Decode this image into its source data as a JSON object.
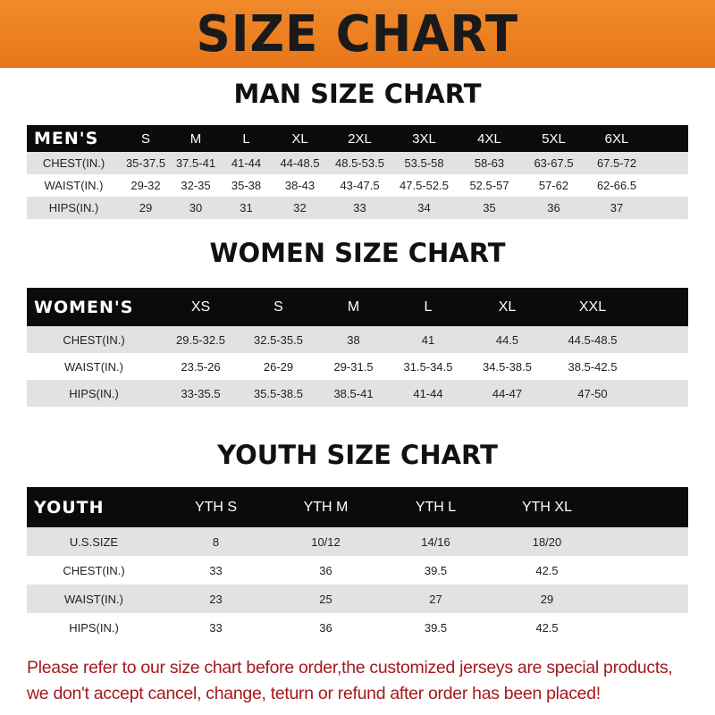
{
  "banner": "SIZE CHART",
  "men": {
    "title": "MAN SIZE CHART",
    "header": [
      "MEN'S",
      "S",
      "M",
      "L",
      "XL",
      "2XL",
      "3XL",
      "4XL",
      "5XL",
      "6XL"
    ],
    "rows": [
      [
        "CHEST(IN.)",
        "35-37.5",
        "37.5-41",
        "41-44",
        "44-48.5",
        "48.5-53.5",
        "53.5-58",
        "58-63",
        "63-67.5",
        "67.5-72"
      ],
      [
        "WAIST(IN.)",
        "29-32",
        "32-35",
        "35-38",
        "38-43",
        "43-47.5",
        "47.5-52.5",
        "52.5-57",
        "57-62",
        "62-66.5"
      ],
      [
        "HIPS(IN.)",
        "29",
        "30",
        "31",
        "32",
        "33",
        "34",
        "35",
        "36",
        "37"
      ]
    ]
  },
  "women": {
    "title": "WOMEN SIZE CHART",
    "header": [
      "WOMEN'S",
      "XS",
      "S",
      "M",
      "L",
      "XL",
      "XXL"
    ],
    "rows": [
      [
        "CHEST(IN.)",
        "29.5-32.5",
        "32.5-35.5",
        "38",
        "41",
        "44.5",
        "44.5-48.5"
      ],
      [
        "WAIST(IN.)",
        "23.5-26",
        "26-29",
        "29-31.5",
        "31.5-34.5",
        "34.5-38.5",
        "38.5-42.5"
      ],
      [
        "HIPS(IN.)",
        "33-35.5",
        "35.5-38.5",
        "38.5-41",
        "41-44",
        "44-47",
        "47-50"
      ]
    ]
  },
  "youth": {
    "title": "YOUTH SIZE CHART",
    "header": [
      "YOUTH",
      "YTH S",
      "YTH M",
      "YTH L",
      "YTH XL"
    ],
    "rows": [
      [
        "U.S.SIZE",
        "8",
        "10/12",
        "14/16",
        "18/20"
      ],
      [
        "CHEST(IN.)",
        "33",
        "36",
        "39.5",
        "42.5"
      ],
      [
        "WAIST(IN.)",
        "23",
        "25",
        "27",
        "29"
      ],
      [
        "HIPS(IN.)",
        "33",
        "36",
        "39.5",
        "42.5"
      ]
    ]
  },
  "note": [
    "Please refer to our size chart before order,the customized jerseys are special products,",
    "we don't accept cancel, change, teturn or refund after order has been placed!"
  ],
  "colors": {
    "banner": "#ee8222",
    "header_row": "#0b0b0b",
    "stripe": "#e2e2e2",
    "note": "#a5191d"
  }
}
